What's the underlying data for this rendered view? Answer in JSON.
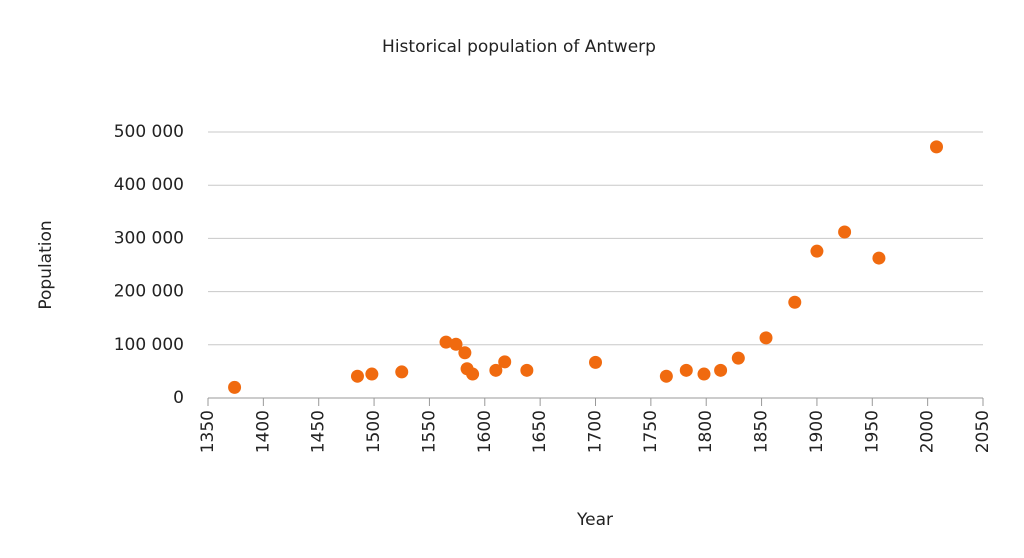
{
  "chart_data": {
    "type": "scatter",
    "title": "Historical population of Antwerp",
    "x_label": "Year",
    "y_label": "Population",
    "color": "#f06a0f",
    "x": [
      1374,
      1485,
      1498,
      1525,
      1565,
      1574,
      1582,
      1584,
      1589,
      1610,
      1618,
      1638,
      1700,
      1764,
      1782,
      1798,
      1813,
      1829,
      1854,
      1880,
      1900,
      1925,
      1956,
      2008
    ],
    "values": [
      20000,
      41000,
      45000,
      49000,
      105000,
      101000,
      85000,
      55000,
      45000,
      52000,
      68000,
      52000,
      67000,
      41000,
      52000,
      45000,
      52000,
      75000,
      113000,
      180000,
      276000,
      312000,
      263000,
      472000
    ],
    "xlim": [
      1350,
      2050
    ],
    "xticks": [
      1350,
      1400,
      1450,
      1500,
      1550,
      1600,
      1650,
      1700,
      1750,
      1800,
      1850,
      1900,
      1950,
      2000,
      2050
    ],
    "ylim": [
      0,
      500000
    ],
    "yticks": [
      0,
      {
        "value": 100000,
        "label": "100 000"
      },
      {
        "value": 200000,
        "label": "200 000"
      },
      {
        "value": 300000,
        "label": "300 000"
      },
      {
        "value": 400000,
        "label": "400 000"
      },
      {
        "value": 500000,
        "label": "500 000"
      }
    ],
    "grid": true
  }
}
